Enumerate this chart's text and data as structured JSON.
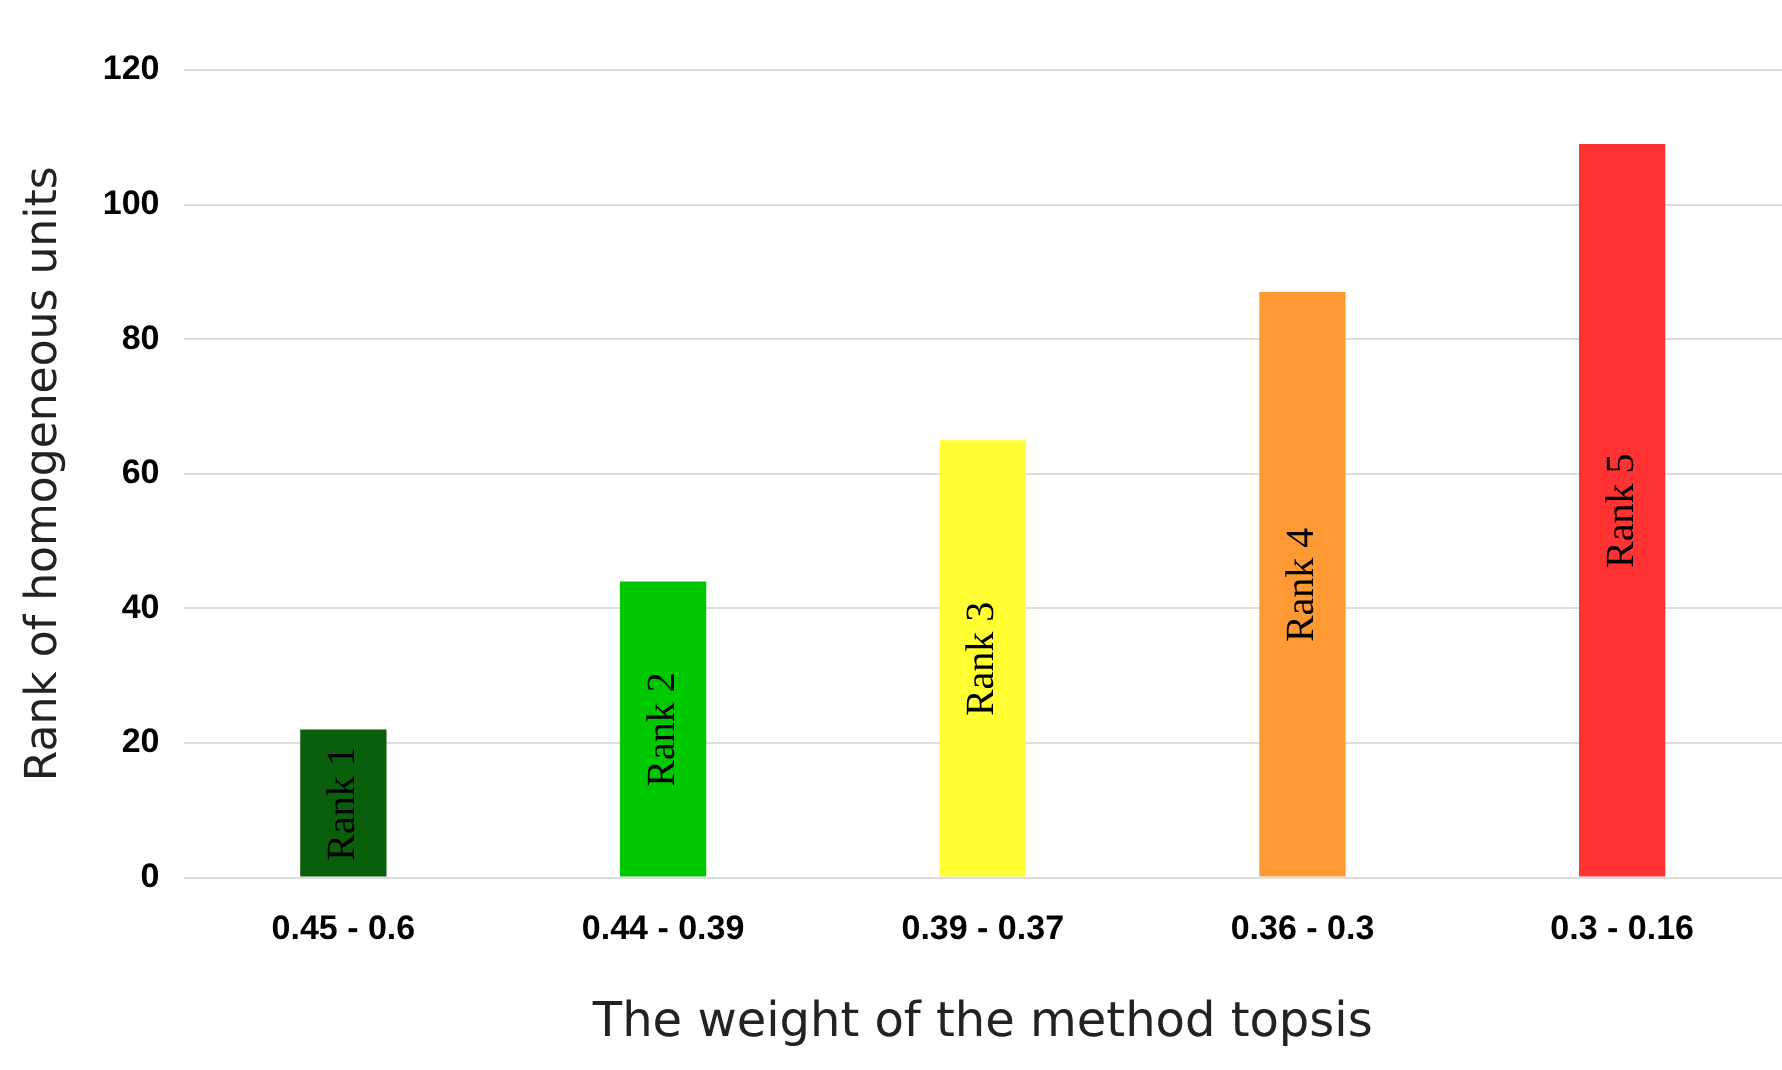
{
  "chart_data": {
    "type": "bar",
    "xlabel": "The weight of the method topsis",
    "ylabel": "Rank of homogeneous units",
    "categories": [
      "0.45 - 0.6",
      "0.44 - 0.39",
      "0.39 - 0.37",
      "0.36 - 0.3",
      "0.3 - 0.16"
    ],
    "values": [
      22,
      44,
      65,
      87,
      109
    ],
    "colors": [
      "#0b5e0b",
      "#00c800",
      "#ffff33",
      "#ff9933",
      "#ff3333"
    ],
    "value_labels": [
      "Rank 1",
      "Rank 2",
      "Rank 3",
      "Rank 4",
      "Rank 5"
    ],
    "ylim": [
      0,
      120
    ],
    "yticks": [
      0,
      20,
      40,
      60,
      80,
      100,
      120
    ],
    "grid": "y",
    "legend": false
  }
}
